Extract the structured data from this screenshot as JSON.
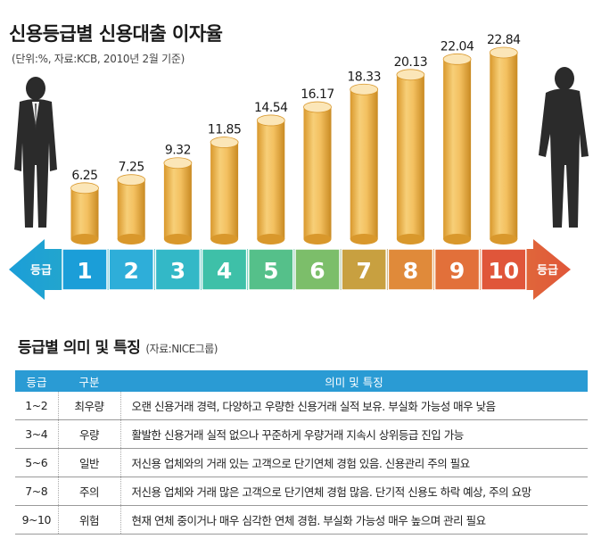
{
  "title": "신용등급별 신용대출 이자율",
  "subtitle": "(단위:%, 자료:KCB, 2010년 2월 기준)",
  "arrow_label_left": "등급",
  "arrow_label_right": "등급",
  "chart_data": {
    "type": "bar",
    "title": "신용등급별 신용대출 이자율",
    "subtitle": "(단위:%, 자료:KCB, 2010년 2월 기준)",
    "categories": [
      "1",
      "2",
      "3",
      "4",
      "5",
      "6",
      "7",
      "8",
      "9",
      "10"
    ],
    "values": [
      6.25,
      7.25,
      9.32,
      11.85,
      14.54,
      16.17,
      18.33,
      20.13,
      22.04,
      22.84
    ],
    "value_labels": [
      "6.25",
      "7.25",
      "9.32",
      "11.85",
      "14.54",
      "16.17",
      "18.33",
      "20.13",
      "22.04",
      "22.84"
    ],
    "xlabel": "등급",
    "ylabel": "",
    "grid": false,
    "legend": "none",
    "colors": {
      "bar": "#f3c060",
      "bar_light": "#fbe6b8",
      "bar_dark": "#d9982c",
      "grade_colors": [
        "#1b9ed8",
        "#2eaed9",
        "#33b8c7",
        "#3ec0a8",
        "#55c08a",
        "#7cbe6a",
        "#c8a040",
        "#e08a3a",
        "#e2703a",
        "#e0563a"
      ]
    }
  },
  "table": {
    "section_title": "등급별 의미 및 특징",
    "section_source": "(자료:NICE그룹)",
    "headers": [
      "등급",
      "구분",
      "의미 및 특징"
    ],
    "rows": [
      [
        "1~2",
        "최우량",
        "오랜 신용거래 경력, 다양하고 우량한 신용거래 실적 보유. 부실화 가능성 매우 낮음"
      ],
      [
        "3~4",
        "우량",
        "활발한 신용거래 실적 없으나 꾸준하게 우량거래 지속시 상위등급 진입 가능"
      ],
      [
        "5~6",
        "일반",
        "저신용 업체와의 거래 있는 고객으로 단기연체 경험 있음. 신용관리 주의 필요"
      ],
      [
        "7~8",
        "주의",
        "저신용 업체와 거래 많은 고객으로 단기연체 경험 많음. 단기적 신용도 하락 예상, 주의 요망"
      ],
      [
        "9~10",
        "위험",
        "현재 연체 중이거나 매우 심각한 연체 경험. 부실화 가능성 매우 높으며 관리 필요"
      ]
    ]
  },
  "icons": [
    "man-standing-icon",
    "man-dejected-icon"
  ]
}
